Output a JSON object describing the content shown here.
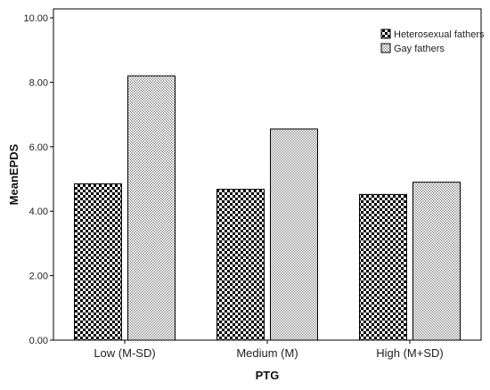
{
  "chart_data": {
    "type": "bar",
    "categories": [
      "Low (M-SD)",
      "Medium (M)",
      "High (M+SD)"
    ],
    "series": [
      {
        "name": "Heterosexual fathers",
        "values": [
          4.85,
          4.68,
          4.52
        ],
        "pattern": "checker",
        "color": "#000000"
      },
      {
        "name": "Gay fathers",
        "values": [
          8.2,
          6.55,
          4.9
        ],
        "pattern": "dots",
        "color": "#9a9a9a"
      }
    ],
    "xlabel": "PTG",
    "ylabel": "MeanEPDS",
    "ylim": [
      0,
      10
    ],
    "yticks": [
      "0.00",
      "2.00",
      "4.00",
      "6.00",
      "8.00",
      "10.00"
    ],
    "grid": false,
    "legend_position": "top-right"
  }
}
